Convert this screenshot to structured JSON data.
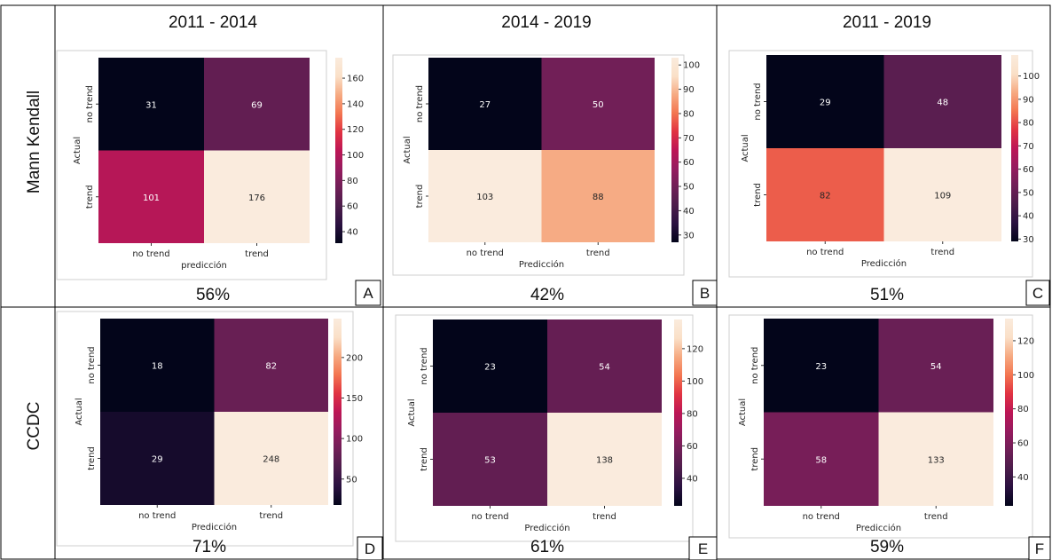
{
  "row_labels": [
    "Mann Kendall",
    "CCDC"
  ],
  "column_titles": [
    "2011 - 2014",
    "2014 - 2019",
    "2011 - 2019"
  ],
  "colorscale": [
    "#03051a",
    "#2a1140",
    "#4c1d4b",
    "#701f57",
    "#961b5f",
    "#bd1655",
    "#e13342",
    "#f37651",
    "#f6aa82",
    "#fae0c8",
    "#faebdd"
  ],
  "chart_data": [
    {
      "type": "heatmap",
      "panel": "A",
      "percent": "56%",
      "categories": [
        "no trend",
        "trend"
      ],
      "xlabel": "predicción",
      "ylabel": "Actual",
      "values": [
        [
          31,
          69
        ],
        [
          101,
          176
        ]
      ],
      "vmin": 31,
      "vmax": 176,
      "colorbar_ticks": [
        40,
        60,
        80,
        100,
        120,
        140,
        160
      ]
    },
    {
      "type": "heatmap",
      "panel": "B",
      "percent": "42%",
      "categories": [
        "no trend",
        "trend"
      ],
      "xlabel": "Predicción",
      "ylabel": "Actual",
      "values": [
        [
          27,
          50
        ],
        [
          103,
          88
        ]
      ],
      "vmin": 27,
      "vmax": 103,
      "colorbar_ticks": [
        30,
        40,
        50,
        60,
        70,
        80,
        90,
        100
      ]
    },
    {
      "type": "heatmap",
      "panel": "C",
      "percent": "51%",
      "categories": [
        "no trend",
        "trend"
      ],
      "xlabel": "Predicción",
      "ylabel": "Actual",
      "values": [
        [
          29,
          48
        ],
        [
          82,
          109
        ]
      ],
      "vmin": 29,
      "vmax": 109,
      "colorbar_ticks": [
        30,
        40,
        50,
        60,
        70,
        80,
        90,
        100
      ]
    },
    {
      "type": "heatmap",
      "panel": "D",
      "percent": "71%",
      "categories": [
        "no trend",
        "trend"
      ],
      "xlabel": "Predicción",
      "ylabel": "Actual",
      "values": [
        [
          18,
          82
        ],
        [
          29,
          248
        ]
      ],
      "vmin": 18,
      "vmax": 248,
      "colorbar_ticks": [
        50,
        100,
        150,
        200
      ]
    },
    {
      "type": "heatmap",
      "panel": "E",
      "percent": "61%",
      "categories": [
        "no trend",
        "trend"
      ],
      "xlabel": "Predicción",
      "ylabel": "Actual",
      "values": [
        [
          23,
          54
        ],
        [
          53,
          138
        ]
      ],
      "vmin": 23,
      "vmax": 138,
      "colorbar_ticks": [
        40,
        60,
        80,
        100,
        120
      ]
    },
    {
      "type": "heatmap",
      "panel": "F",
      "percent": "59%",
      "categories": [
        "no trend",
        "trend"
      ],
      "xlabel": "Predicción",
      "ylabel": "Actual",
      "values": [
        [
          23,
          54
        ],
        [
          58,
          133
        ]
      ],
      "vmin": 23,
      "vmax": 133,
      "colorbar_ticks": [
        40,
        60,
        80,
        100,
        120
      ]
    }
  ]
}
